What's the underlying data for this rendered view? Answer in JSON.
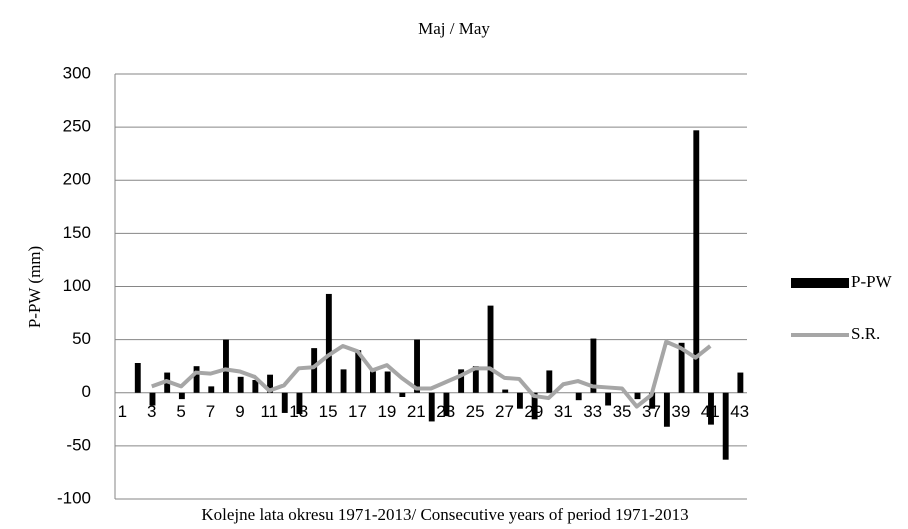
{
  "chart_data": {
    "type": "bar",
    "title": "Maj / May",
    "y_label": "P-PW (mm)",
    "x_label": "Kolejne lata okresu 1971-2013/ Consecutive years of period 1971-2013",
    "categories": [
      "1",
      null,
      "3",
      null,
      "5",
      null,
      "7",
      null,
      "9",
      null,
      "11",
      null,
      "13",
      null,
      "15",
      null,
      "17",
      null,
      "19",
      null,
      "21",
      null,
      "23",
      null,
      "25",
      null,
      "27",
      null,
      "29",
      null,
      "31",
      null,
      "33",
      null,
      "35",
      null,
      "37",
      null,
      "39",
      null,
      "41",
      null,
      "43"
    ],
    "series": [
      {
        "name": "P-PW",
        "type": "bar",
        "color": "#000000",
        "values": [
          0,
          28,
          -12,
          19,
          -6,
          25,
          6,
          50,
          15,
          12,
          17,
          -19,
          -20,
          42,
          93,
          22,
          40,
          20,
          20,
          -4,
          50,
          -27,
          -22,
          22,
          25,
          82,
          3,
          -15,
          -25,
          21,
          0,
          -7,
          51,
          -12,
          0,
          -6,
          -15,
          -32,
          47,
          247,
          -30,
          -63,
          19
        ]
      },
      {
        "name": "S.R.",
        "type": "line",
        "color": "#a6a6a6",
        "values": [
          null,
          null,
          6,
          11,
          6,
          19,
          18,
          22,
          20,
          15,
          2,
          7,
          23,
          24,
          35,
          44,
          39,
          21,
          26,
          14,
          4,
          4,
          10,
          16,
          23,
          23,
          14,
          13,
          -3,
          -5,
          8,
          11,
          6,
          5,
          4,
          -13,
          -2,
          48,
          42,
          33,
          44,
          null,
          null
        ]
      }
    ],
    "ylim": [
      -100,
      300
    ],
    "yticks": [
      -100,
      -50,
      0,
      50,
      100,
      150,
      200,
      250,
      300
    ],
    "grid": true,
    "legend": "right"
  }
}
